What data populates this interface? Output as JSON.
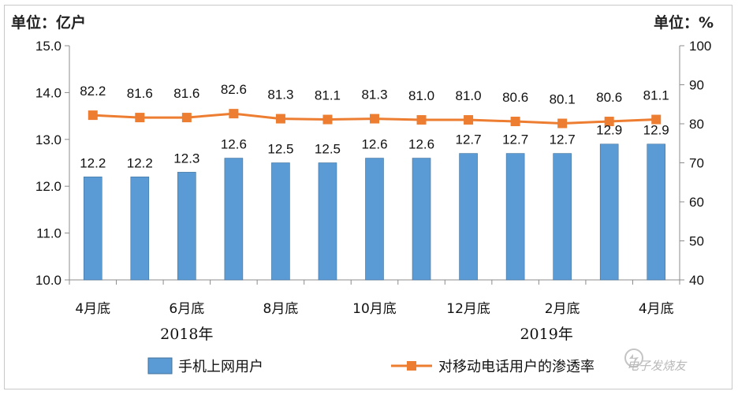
{
  "chart_data": {
    "type": "bar",
    "left_unit": "单位：亿户",
    "right_unit": "单位：%",
    "categories": [
      "2018-04",
      "2018-05",
      "2018-06",
      "2018-07",
      "2018-08",
      "2018-09",
      "2018-10",
      "2018-11",
      "2018-12",
      "2019-01",
      "2019-02",
      "2019-03",
      "2019-04"
    ],
    "category_labels": [
      "4月底",
      "",
      "6月底",
      "",
      "8月底",
      "",
      "10月底",
      "",
      "12月底",
      "",
      "2月底",
      "",
      "4月底"
    ],
    "year_labels": [
      "2018年",
      "2019年"
    ],
    "series": [
      {
        "name": "手机上网用户",
        "type": "bar",
        "axis": "left",
        "color": "#5b9bd5",
        "values": [
          12.2,
          12.2,
          12.3,
          12.6,
          12.5,
          12.5,
          12.6,
          12.6,
          12.7,
          12.7,
          12.7,
          12.9,
          12.9
        ],
        "labels": [
          "12.2",
          "12.2",
          "12.3",
          "12.6",
          "12.5",
          "12.5",
          "12.6",
          "12.6",
          "12.7",
          "12.7",
          "12.7",
          "12.9",
          "12.9"
        ]
      },
      {
        "name": "对移动电话用户的渗透率",
        "type": "line",
        "axis": "right",
        "color": "#ed7d31",
        "values": [
          82.2,
          81.6,
          81.6,
          82.6,
          81.3,
          81.1,
          81.3,
          81.0,
          81.0,
          80.6,
          80.1,
          80.6,
          81.1
        ],
        "labels": [
          "82.2",
          "81.6",
          "81.6",
          "82.6",
          "81.3",
          "81.1",
          "81.3",
          "81.0",
          "81.0",
          "80.6",
          "80.1",
          "80.6",
          "81.1"
        ]
      }
    ],
    "y_left": {
      "min": 10,
      "max": 15,
      "ticks": [
        "10.0",
        "11.0",
        "12.0",
        "13.0",
        "14.0",
        "15.0"
      ]
    },
    "y_right": {
      "min": 40,
      "max": 100,
      "ticks": [
        "40",
        "50",
        "60",
        "70",
        "80",
        "90",
        "100"
      ]
    },
    "grid": false,
    "legend": "bottom"
  },
  "watermark": "电子发烧友"
}
